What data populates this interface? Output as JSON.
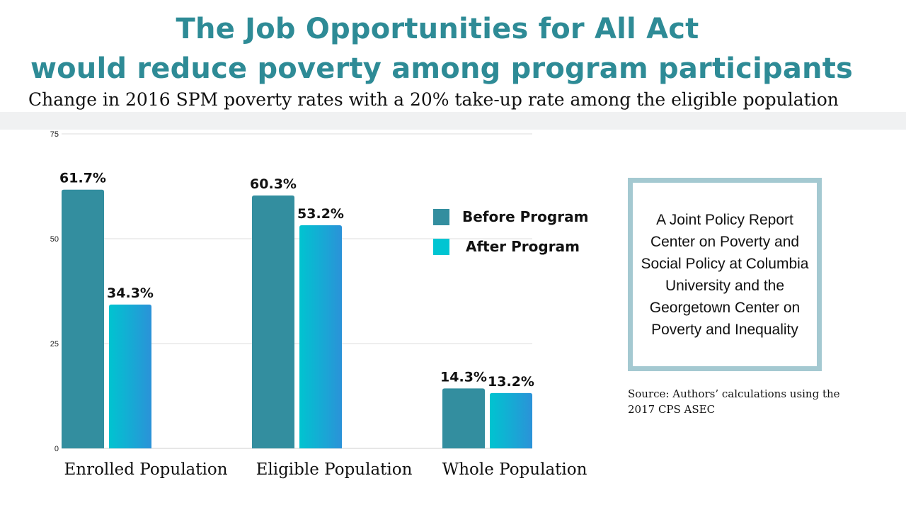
{
  "title_line1": "The Job Opportunities for All Act",
  "title_line2": "would reduce poverty among program participants",
  "subtitle": "Change in 2016 SPM poverty rates with a 20% take-up rate among the eligible population",
  "report_box": "A Joint Policy Report Center on Poverty and Social Policy at Columbia University and the Georgetown Center on Poverty and Inequality",
  "source": "Source: Authors’ calculations using the 2017 CPS ASEC",
  "colors": {
    "title": "#2e8b96",
    "before": "#338e9f",
    "after_start": "#00c4d0",
    "after_end": "#2b92d8",
    "legend_after": "#00c5d2",
    "box_border": "#a4c9d1"
  },
  "chart_data": {
    "type": "bar",
    "categories": [
      "Enrolled Population",
      "Eligible Population",
      "Whole Population"
    ],
    "series": [
      {
        "name": "Before Program",
        "values": [
          61.7,
          60.3,
          14.3
        ],
        "labels": [
          "61.7%",
          "60.3%",
          "14.3%"
        ]
      },
      {
        "name": "After Program",
        "values": [
          34.3,
          53.2,
          13.2
        ],
        "labels": [
          "34.3%",
          "53.2%",
          "13.2%"
        ]
      }
    ],
    "ylim": [
      0,
      75
    ],
    "yticks": [
      0,
      25,
      50,
      75
    ],
    "ytick_labels": [
      "0",
      "25",
      "50",
      "75"
    ],
    "grid": true,
    "legend": "right"
  }
}
